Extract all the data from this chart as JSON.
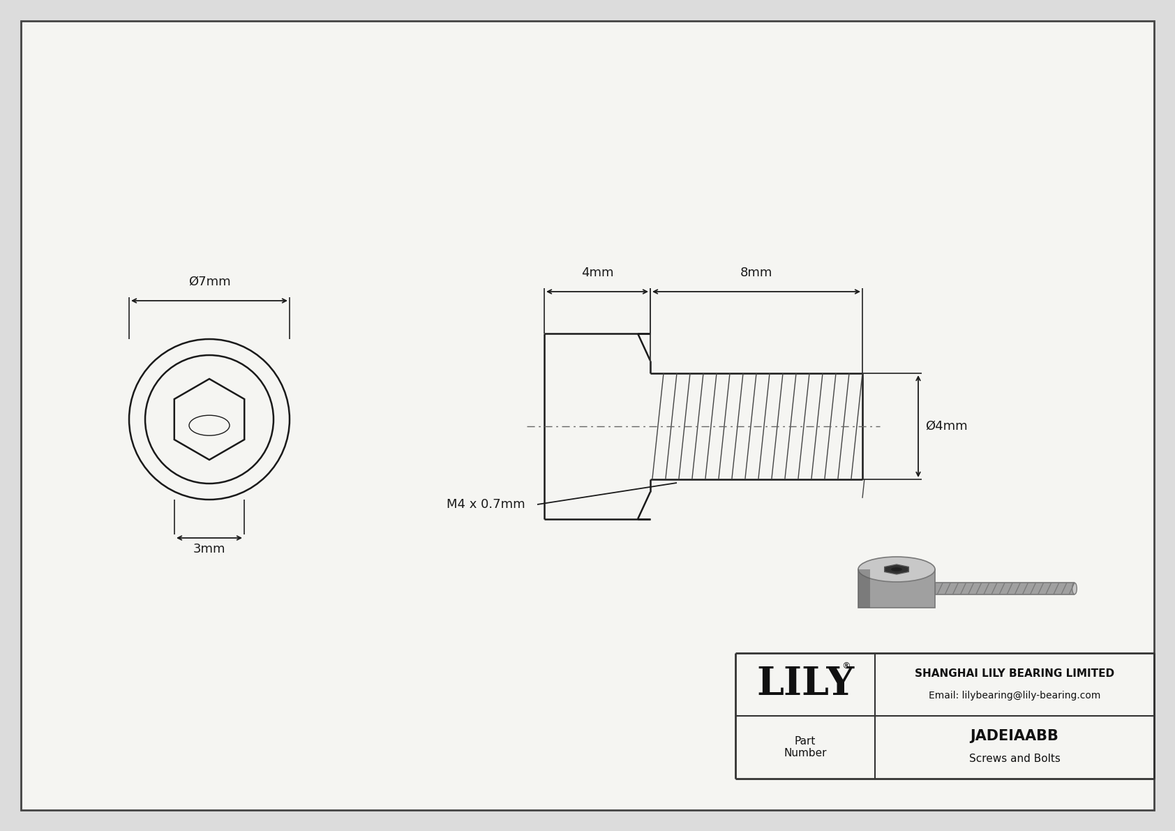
{
  "bg_color": "#dcdcdc",
  "drawing_bg": "#e8e8e8",
  "line_color": "#1a1a1a",
  "title": "JADEIAABB",
  "subtitle": "Screws and Bolts",
  "company": "SHANGHAI LILY BEARING LIMITED",
  "email": "Email: lilybearing@lily-bearing.com",
  "part_label": "Part\nNumber",
  "logo_text": "LILY",
  "dim_head_diameter": "Ø7mm",
  "dim_head_height": "3mm",
  "dim_shank_length": "4mm",
  "dim_thread_length": "8mm",
  "dim_thread_diameter": "Ø4mm",
  "dim_thread_spec": "M4 x 0.7mm",
  "border_color": "#444444"
}
